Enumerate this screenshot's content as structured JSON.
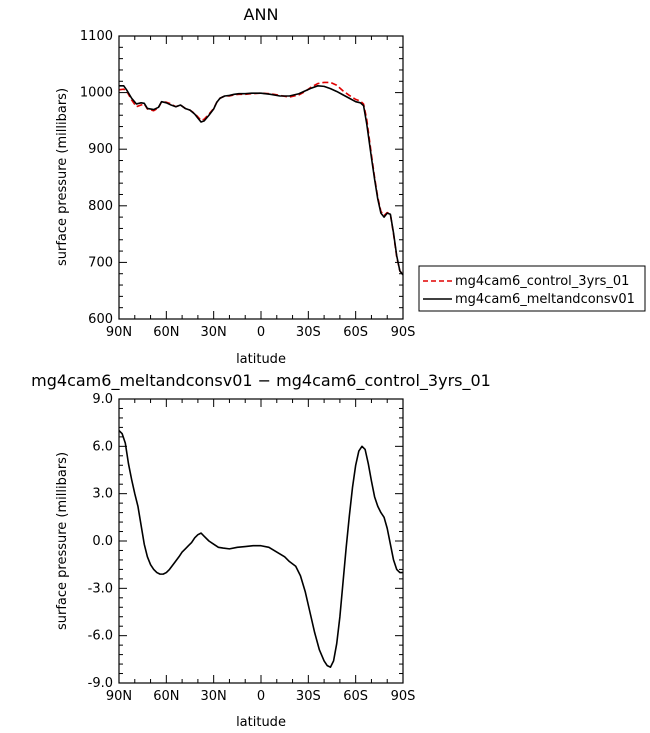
{
  "chart_data": [
    {
      "type": "line",
      "title": "ANN",
      "xlabel": "latitude",
      "ylabel": "surface pressure (millibars)",
      "xlim": [
        90,
        -90
      ],
      "ylim": [
        600,
        1100
      ],
      "x_ticks": [
        90,
        60,
        30,
        0,
        -30,
        -60,
        -90
      ],
      "x_tick_labels": [
        "90N",
        "60N",
        "30N",
        "0",
        "30S",
        "60S",
        "90S"
      ],
      "y_ticks": [
        600,
        700,
        800,
        900,
        1000,
        1100
      ],
      "y_tick_labels": [
        "600",
        "700",
        "800",
        "900",
        "1000",
        "1100"
      ],
      "legend_position": "right",
      "series": [
        {
          "name": "mg4cam6_control_3yrs_01",
          "color": "#e00000",
          "dash": "dashed",
          "points": [
            [
              90,
              1005
            ],
            [
              87,
              1006
            ],
            [
              85,
              1002
            ],
            [
              82,
              987
            ],
            [
              79,
              975
            ],
            [
              76,
              978
            ],
            [
              74,
              980
            ],
            [
              72,
              971
            ],
            [
              68,
              968
            ],
            [
              65,
              973
            ],
            [
              63,
              984
            ],
            [
              60,
              983
            ],
            [
              57,
              980
            ],
            [
              54,
              975
            ],
            [
              51,
              978
            ],
            [
              48,
              972
            ],
            [
              45,
              969
            ],
            [
              42,
              963
            ],
            [
              40,
              957
            ],
            [
              38,
              951
            ],
            [
              36,
              953
            ],
            [
              33,
              962
            ],
            [
              30,
              972
            ],
            [
              28,
              983
            ],
            [
              26,
              990
            ],
            [
              23,
              994
            ],
            [
              20,
              994
            ],
            [
              17,
              996
            ],
            [
              14,
              997
            ],
            [
              10,
              997
            ],
            [
              6,
              998
            ],
            [
              0,
              999
            ],
            [
              -6,
              998
            ],
            [
              -12,
              995
            ],
            [
              -18,
              992
            ],
            [
              -24,
              996
            ],
            [
              -28,
              1002
            ],
            [
              -32,
              1010
            ],
            [
              -36,
              1016
            ],
            [
              -40,
              1018
            ],
            [
              -44,
              1018
            ],
            [
              -48,
              1013
            ],
            [
              -52,
              1003
            ],
            [
              -56,
              995
            ],
            [
              -60,
              988
            ],
            [
              -63,
              985
            ],
            [
              -65,
              980
            ],
            [
              -67,
              953
            ],
            [
              -70,
              890
            ],
            [
              -72,
              850
            ],
            [
              -74,
              815
            ],
            [
              -76,
              790
            ],
            [
              -78,
              783
            ],
            [
              -80,
              788
            ],
            [
              -82,
              785
            ],
            [
              -84,
              750
            ],
            [
              -86,
              710
            ],
            [
              -88,
              685
            ],
            [
              -90,
              678
            ]
          ]
        },
        {
          "name": "mg4cam6_meltandconsv01",
          "color": "#000000",
          "dash": "solid",
          "points": [
            [
              90,
              1012
            ],
            [
              87,
              1012
            ],
            [
              85,
              1004
            ],
            [
              82,
              990
            ],
            [
              79,
              980
            ],
            [
              76,
              982
            ],
            [
              74,
              981
            ],
            [
              72,
              972
            ],
            [
              68,
              970
            ],
            [
              65,
              974
            ],
            [
              63,
              984
            ],
            [
              60,
              982
            ],
            [
              57,
              978
            ],
            [
              54,
              975
            ],
            [
              51,
              978
            ],
            [
              48,
              972
            ],
            [
              45,
              969
            ],
            [
              42,
              962
            ],
            [
              40,
              955
            ],
            [
              38,
              948
            ],
            [
              36,
              950
            ],
            [
              33,
              960
            ],
            [
              30,
              971
            ],
            [
              28,
              983
            ],
            [
              26,
              990
            ],
            [
              23,
              994
            ],
            [
              20,
              995
            ],
            [
              17,
              997
            ],
            [
              14,
              998
            ],
            [
              10,
              998
            ],
            [
              6,
              999
            ],
            [
              0,
              999
            ],
            [
              -6,
              997
            ],
            [
              -12,
              994
            ],
            [
              -18,
              994
            ],
            [
              -24,
              998
            ],
            [
              -28,
              1003
            ],
            [
              -32,
              1008
            ],
            [
              -36,
              1012
            ],
            [
              -40,
              1011
            ],
            [
              -44,
              1007
            ],
            [
              -48,
              1002
            ],
            [
              -52,
              996
            ],
            [
              -56,
              990
            ],
            [
              -60,
              984
            ],
            [
              -63,
              982
            ],
            [
              -65,
              977
            ],
            [
              -67,
              945
            ],
            [
              -70,
              885
            ],
            [
              -72,
              847
            ],
            [
              -74,
              812
            ],
            [
              -76,
              787
            ],
            [
              -78,
              780
            ],
            [
              -80,
              787
            ],
            [
              -82,
              785
            ],
            [
              -84,
              752
            ],
            [
              -86,
              712
            ],
            [
              -88,
              685
            ],
            [
              -90,
              678
            ]
          ]
        }
      ]
    },
    {
      "type": "line",
      "title": "mg4cam6_meltandconsv01 − mg4cam6_control_3yrs_01",
      "xlabel": "latitude",
      "ylabel": "surface pressure (millibars)",
      "xlim": [
        90,
        -90
      ],
      "ylim": [
        -9,
        9
      ],
      "x_ticks": [
        90,
        60,
        30,
        0,
        -30,
        -60,
        -90
      ],
      "x_tick_labels": [
        "90N",
        "60N",
        "30N",
        "0",
        "30S",
        "60S",
        "90S"
      ],
      "y_ticks": [
        -9,
        -6,
        -3,
        0,
        3,
        6,
        9
      ],
      "y_tick_labels": [
        "-9.0",
        "-6.0",
        "-3.0",
        "0.0",
        "3.0",
        "6.0",
        "9.0"
      ],
      "series": [
        {
          "color": "#000000",
          "dash": "solid",
          "points": [
            [
              90,
              7.0
            ],
            [
              88,
              6.8
            ],
            [
              86,
              6.2
            ],
            [
              84,
              4.9
            ],
            [
              82,
              3.9
            ],
            [
              80,
              3.0
            ],
            [
              78,
              2.2
            ],
            [
              76,
              1.0
            ],
            [
              74,
              -0.2
            ],
            [
              72,
              -1.0
            ],
            [
              70,
              -1.5
            ],
            [
              68,
              -1.8
            ],
            [
              66,
              -2.0
            ],
            [
              64,
              -2.1
            ],
            [
              62,
              -2.1
            ],
            [
              60,
              -2.0
            ],
            [
              58,
              -1.8
            ],
            [
              55,
              -1.4
            ],
            [
              52,
              -1.0
            ],
            [
              50,
              -0.7
            ],
            [
              48,
              -0.5
            ],
            [
              46,
              -0.3
            ],
            [
              44,
              -0.1
            ],
            [
              42,
              0.2
            ],
            [
              40,
              0.4
            ],
            [
              38,
              0.5
            ],
            [
              36,
              0.3
            ],
            [
              33,
              0.0
            ],
            [
              30,
              -0.2
            ],
            [
              27,
              -0.4
            ],
            [
              24,
              -0.45
            ],
            [
              20,
              -0.5
            ],
            [
              15,
              -0.4
            ],
            [
              10,
              -0.35
            ],
            [
              5,
              -0.3
            ],
            [
              0,
              -0.3
            ],
            [
              -5,
              -0.4
            ],
            [
              -10,
              -0.7
            ],
            [
              -15,
              -1.0
            ],
            [
              -18,
              -1.3
            ],
            [
              -22,
              -1.6
            ],
            [
              -25,
              -2.2
            ],
            [
              -28,
              -3.2
            ],
            [
              -31,
              -4.5
            ],
            [
              -34,
              -5.8
            ],
            [
              -37,
              -6.9
            ],
            [
              -40,
              -7.6
            ],
            [
              -42,
              -7.9
            ],
            [
              -44,
              -8.0
            ],
            [
              -46,
              -7.6
            ],
            [
              -48,
              -6.5
            ],
            [
              -50,
              -4.8
            ],
            [
              -52,
              -2.6
            ],
            [
              -54,
              -0.4
            ],
            [
              -56,
              1.6
            ],
            [
              -58,
              3.4
            ],
            [
              -60,
              4.8
            ],
            [
              -62,
              5.7
            ],
            [
              -64,
              6.0
            ],
            [
              -66,
              5.8
            ],
            [
              -68,
              4.9
            ],
            [
              -70,
              3.8
            ],
            [
              -72,
              2.8
            ],
            [
              -74,
              2.2
            ],
            [
              -76,
              1.8
            ],
            [
              -78,
              1.5
            ],
            [
              -80,
              0.8
            ],
            [
              -82,
              -0.2
            ],
            [
              -84,
              -1.2
            ],
            [
              -86,
              -1.8
            ],
            [
              -88,
              -2.0
            ],
            [
              -90,
              -2.0
            ]
          ]
        }
      ]
    }
  ]
}
